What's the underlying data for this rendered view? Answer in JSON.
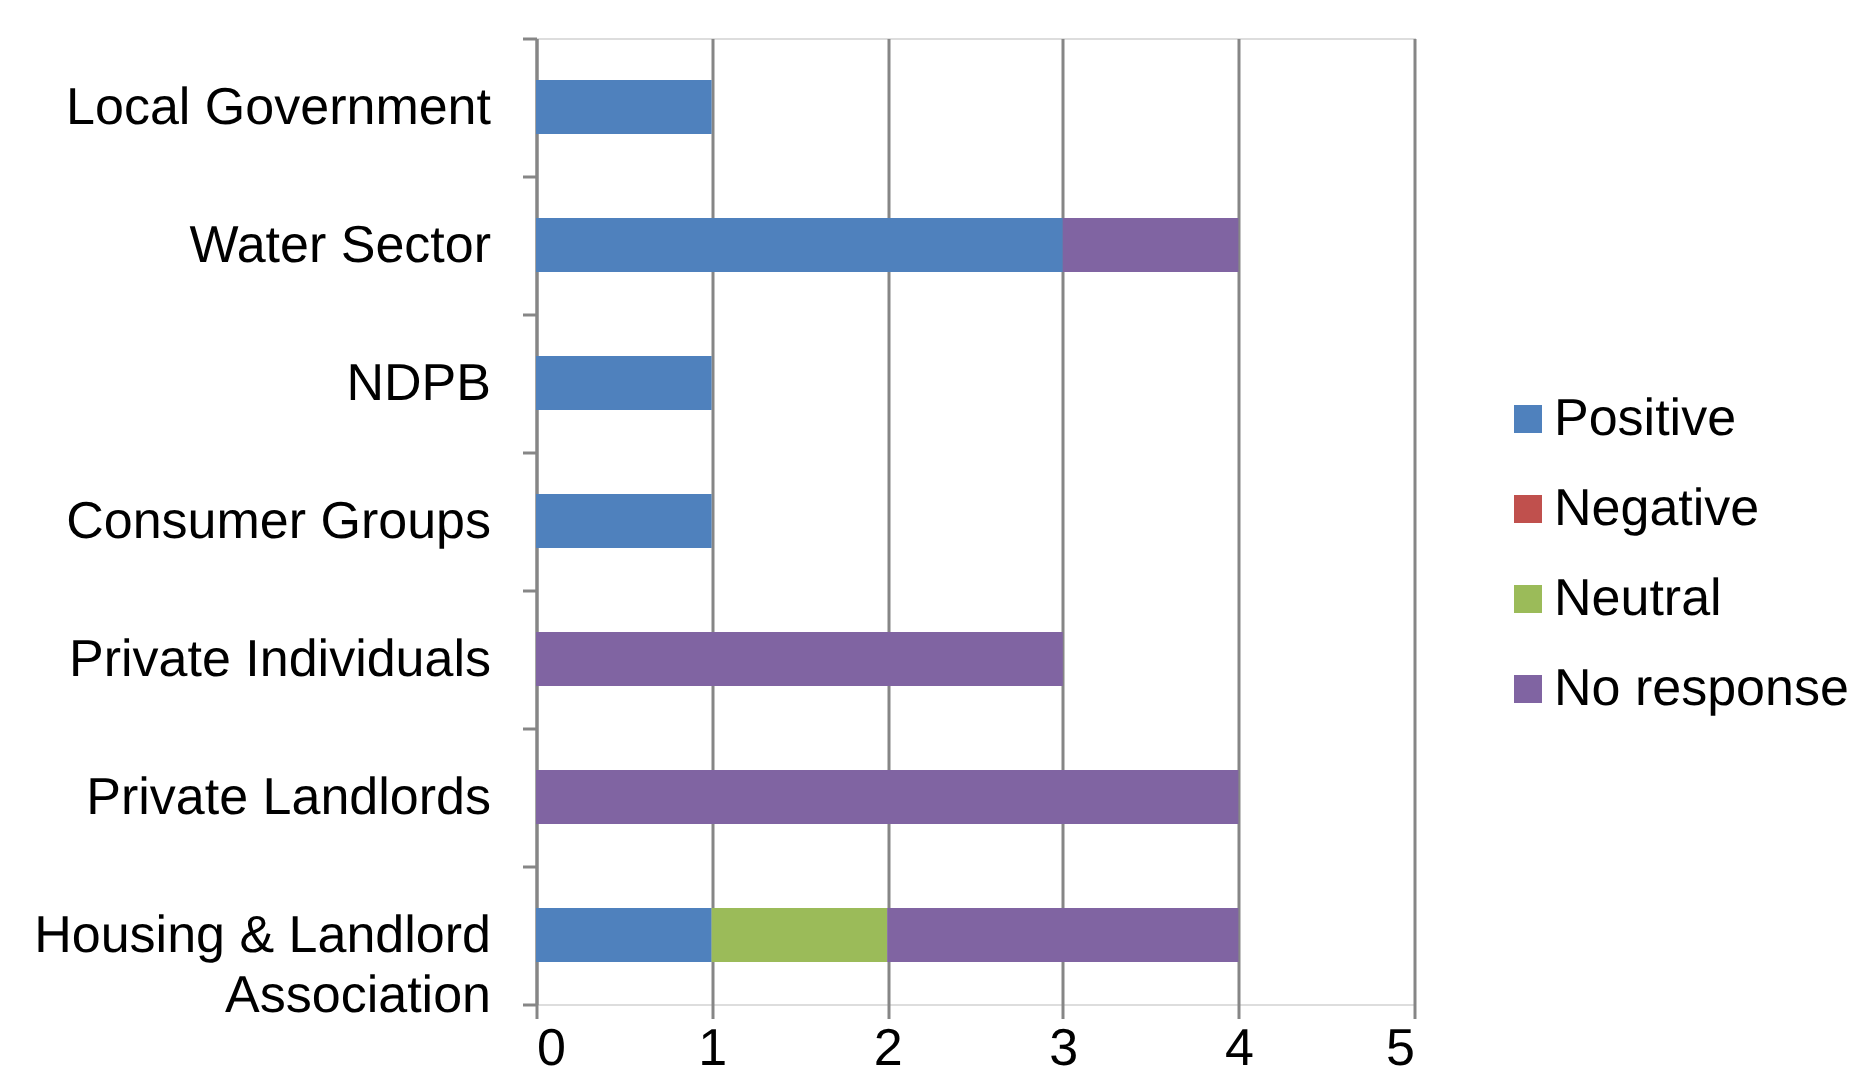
{
  "chart_data": {
    "type": "bar",
    "orientation": "horizontal",
    "stacked": true,
    "categories": [
      "Local Government",
      "Water Sector",
      "NDPB",
      "Consumer Groups",
      "Private Individuals",
      "Private Landlords",
      "Housing & Landlord Association"
    ],
    "series": [
      {
        "name": "Positive",
        "color": "#4f81bd",
        "values": [
          1,
          3,
          1,
          1,
          null,
          null,
          1
        ]
      },
      {
        "name": "Negative",
        "color": "#c0504d",
        "values": [
          null,
          null,
          null,
          null,
          null,
          null,
          null
        ]
      },
      {
        "name": "Neutral",
        "color": "#9bbb59",
        "values": [
          null,
          null,
          null,
          null,
          null,
          null,
          1
        ]
      },
      {
        "name": "No response",
        "color": "#8064a2",
        "values": [
          null,
          1,
          null,
          null,
          3,
          4,
          2
        ]
      }
    ],
    "xlim": [
      0,
      5
    ],
    "xticks": [
      0,
      1,
      2,
      3,
      4,
      5
    ],
    "grid": "x",
    "legend": "right"
  }
}
